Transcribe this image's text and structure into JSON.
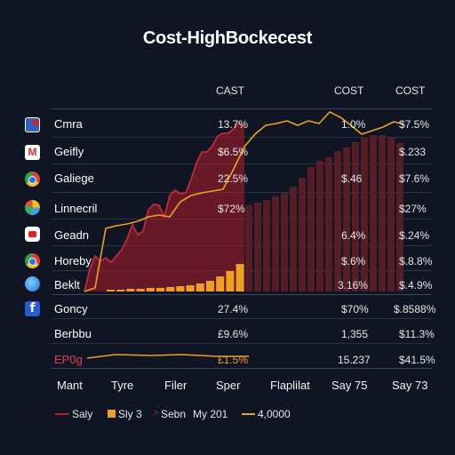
{
  "chart_data": {
    "type": "table",
    "title": "Cost-HighBockecest",
    "columns": [
      "CAST",
      "COST",
      "COST"
    ],
    "rows": [
      {
        "label": "Cmra",
        "icon": "flag-icon",
        "values": [
          "13.7%",
          "1.0%",
          "$7.5%"
        ]
      },
      {
        "label": "Geifly",
        "icon": "gmail-icon",
        "values": [
          "$6.5%",
          "",
          "$.233"
        ]
      },
      {
        "label": "Galiege",
        "icon": "chrome-icon",
        "values": [
          "22.5%",
          "$.46",
          "$7.6%"
        ]
      },
      {
        "label": "Linnecril",
        "icon": "colorful-app-icon",
        "values": [
          "$72%",
          "",
          "$27%"
        ]
      },
      {
        "label": "Geadn",
        "icon": "youtube-icon",
        "values": [
          "",
          "6.4%",
          "$.24%"
        ]
      },
      {
        "label": "Horeby",
        "icon": "chrome-icon",
        "values": [
          "",
          "$.6%",
          "$.8.8%"
        ]
      },
      {
        "label": "Beklt",
        "icon": "globe-icon",
        "values": [
          "",
          "3.16%",
          "$.4.9%"
        ]
      },
      {
        "label": "Goncy",
        "icon": "facebook-icon",
        "values": [
          "27.4%",
          "$70%",
          "$.8588%"
        ]
      },
      {
        "label": "Berbbu",
        "icon": "",
        "values": [
          "£9.6%",
          "1,355",
          "$11.3%"
        ]
      },
      {
        "label": "EP0g",
        "icon": "",
        "values": [
          "£1.5%",
          "15.237",
          "$41.5%"
        ]
      }
    ],
    "x_tick_labels": [
      "Mant",
      "Tyre",
      "Filer",
      "Sper",
      "Flaplilat",
      "Say 75",
      "Say 73"
    ],
    "series": [
      {
        "name": "Saly",
        "kind": "area",
        "color": "#b01e2e",
        "values": [
          0,
          25,
          40,
          34,
          38,
          33,
          40,
          47,
          59,
          75,
          64,
          68,
          92,
          98,
          97,
          84,
          108,
          114,
          110,
          111,
          126,
          144,
          157,
          157,
          164,
          175,
          178,
          178,
          183,
          190,
          184
        ]
      },
      {
        "name": "Sly 3",
        "kind": "bar",
        "color": "#f0a020",
        "values": [
          2,
          2,
          3,
          3,
          4,
          4,
          5,
          6,
          7,
          9,
          12,
          17,
          23,
          31
        ]
      },
      {
        "name": "Sebn",
        "kind": "bar",
        "color": "#5a1d27",
        "values": [
          97,
          100,
          103,
          107,
          111,
          118,
          128,
          140,
          147,
          151,
          158,
          162,
          168,
          174,
          176,
          176,
          173,
          167
        ]
      },
      {
        "name": "4,0000",
        "kind": "line",
        "color": "#f0a020",
        "values": [
          0,
          4,
          71,
          74,
          76,
          79,
          84,
          86,
          84,
          101,
          108,
          111,
          113,
          115,
          138,
          163,
          177,
          187,
          189,
          192,
          187,
          192,
          189,
          202,
          196,
          187,
          177,
          181,
          185,
          191,
          188
        ]
      }
    ],
    "legend": [
      {
        "label": "Saly",
        "swatch": "line",
        "color": "#b01e2e"
      },
      {
        "label": "Sly 3",
        "swatch": "square",
        "color": "#f0a020"
      },
      {
        "label": "Sebn",
        "swatch": "arrow",
        "color": "#b01e2e"
      },
      {
        "label": "My 201",
        "swatch": "none",
        "color": "#e6e6e6"
      },
      {
        "label": "4,0000",
        "swatch": "line",
        "color": "#f0a020"
      }
    ],
    "legend_position": "bottom-left",
    "grid": true
  }
}
